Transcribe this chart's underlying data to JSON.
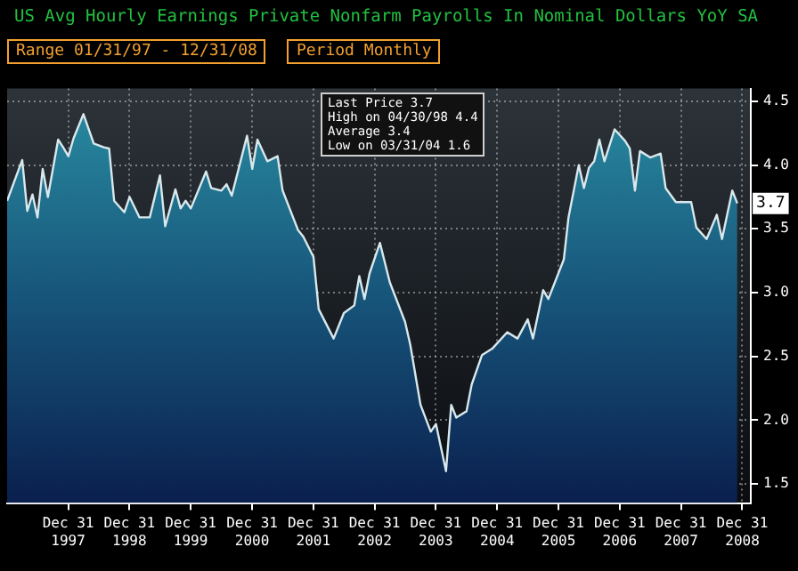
{
  "chart_data": {
    "type": "area",
    "title": "US Avg Hourly Earnings Private Nonfarm Payrolls In Nominal Dollars YoY SA",
    "annotations": [
      "Range 01/31/97 - 12/31/08",
      "Period Monthly",
      "Last Price 3.7",
      "High on 04/30/98 4.4",
      "Average 3.4",
      "Low on 03/31/04 1.6",
      {
        "text": "3.7",
        "x": "2008-12",
        "y": 3.7
      }
    ],
    "x": [
      "1997-01",
      "1997-04",
      "1997-05",
      "1997-06",
      "1997-07",
      "1997-08",
      "1997-09",
      "1997-11",
      "1997-12",
      "1998-01",
      "1998-02",
      "1998-04",
      "1998-06",
      "1998-08",
      "1998-09",
      "1998-10",
      "1998-12",
      "1999-01",
      "1999-03",
      "1999-05",
      "1999-07",
      "1999-08",
      "1999-10",
      "1999-11",
      "1999-12",
      "2000-01",
      "2000-04",
      "2000-05",
      "2000-07",
      "2000-08",
      "2000-09",
      "2000-12",
      "2001-01",
      "2001-02",
      "2001-04",
      "2001-06",
      "2001-07",
      "2001-10",
      "2001-11",
      "2002-01",
      "2002-02",
      "2002-05",
      "2002-07",
      "2002-09",
      "2002-10",
      "2002-11",
      "2002-12",
      "2003-02",
      "2003-04",
      "2003-07",
      "2003-08",
      "2003-10",
      "2003-12",
      "2004-01",
      "2004-03",
      "2004-04",
      "2004-05",
      "2004-07",
      "2004-08",
      "2004-10",
      "2004-12",
      "2005-03",
      "2005-05",
      "2005-07",
      "2005-08",
      "2005-10",
      "2005-11",
      "2006-02",
      "2006-03",
      "2006-05",
      "2006-06",
      "2006-07",
      "2006-08",
      "2006-09",
      "2006-10",
      "2006-12",
      "2007-02",
      "2007-03",
      "2007-04",
      "2007-05",
      "2007-07",
      "2007-09",
      "2007-10",
      "2007-12",
      "2008-03",
      "2008-04",
      "2008-06",
      "2008-08",
      "2008-09",
      "2008-11",
      "2008-12"
    ],
    "series": [
      {
        "color": "#d8e8ec",
        "values": [
          3.72,
          4.04,
          3.64,
          3.77,
          3.59,
          3.97,
          3.75,
          4.2,
          4.14,
          4.07,
          4.21,
          4.4,
          4.17,
          4.14,
          4.13,
          3.72,
          3.63,
          3.75,
          3.59,
          3.59,
          3.92,
          3.52,
          3.81,
          3.66,
          3.72,
          3.66,
          3.95,
          3.82,
          3.8,
          3.85,
          3.76,
          4.23,
          3.97,
          4.2,
          4.03,
          4.07,
          3.8,
          3.49,
          3.44,
          3.28,
          2.87,
          2.64,
          2.84,
          2.9,
          3.13,
          2.95,
          3.15,
          3.39,
          3.08,
          2.77,
          2.59,
          2.12,
          1.91,
          1.97,
          1.6,
          2.12,
          2.02,
          2.07,
          2.28,
          2.51,
          2.56,
          2.69,
          2.64,
          2.79,
          2.64,
          3.02,
          2.95,
          3.26,
          3.59,
          4.0,
          3.82,
          3.98,
          4.03,
          4.2,
          4.03,
          4.28,
          4.19,
          4.13,
          3.8,
          4.11,
          4.06,
          4.09,
          3.82,
          3.71,
          3.71,
          3.51,
          3.42,
          3.61,
          3.42,
          3.8,
          3.7
        ]
      }
    ],
    "xlim": [
      "1997-01-01",
      "2009-02-20"
    ],
    "xticks": [
      {
        "value": "1997-12-31",
        "label": "Dec 31\n1997"
      },
      {
        "value": "1998-12-31",
        "label": "Dec 31\n1998"
      },
      {
        "value": "1999-12-31",
        "label": "Dec 31\n1999"
      },
      {
        "value": "2000-12-31",
        "label": "Dec 31\n2000"
      },
      {
        "value": "2001-12-31",
        "label": "Dec 31\n2001"
      },
      {
        "value": "2002-12-31",
        "label": "Dec 31\n2002"
      },
      {
        "value": "2003-12-31",
        "label": "Dec 31\n2003"
      },
      {
        "value": "2004-12-31",
        "label": "Dec 31\n2004"
      },
      {
        "value": "2005-12-31",
        "label": "Dec 31\n2005"
      },
      {
        "value": "2006-12-31",
        "label": "Dec 31\n2006"
      },
      {
        "value": "2007-12-31",
        "label": "Dec 31\n2007"
      },
      {
        "value": "2008-12-31",
        "label": "Dec 31\n2008"
      }
    ],
    "ylim": [
      1.35,
      4.6
    ],
    "yticks": [
      1.5,
      {
        "value": 2,
        "label": "2.0"
      },
      2.5,
      {
        "value": 3,
        "label": "3.0"
      },
      3.5,
      {
        "value": 4,
        "label": "4.0"
      },
      4.5
    ],
    "grid": true,
    "marker": "none",
    "legend": false
  }
}
